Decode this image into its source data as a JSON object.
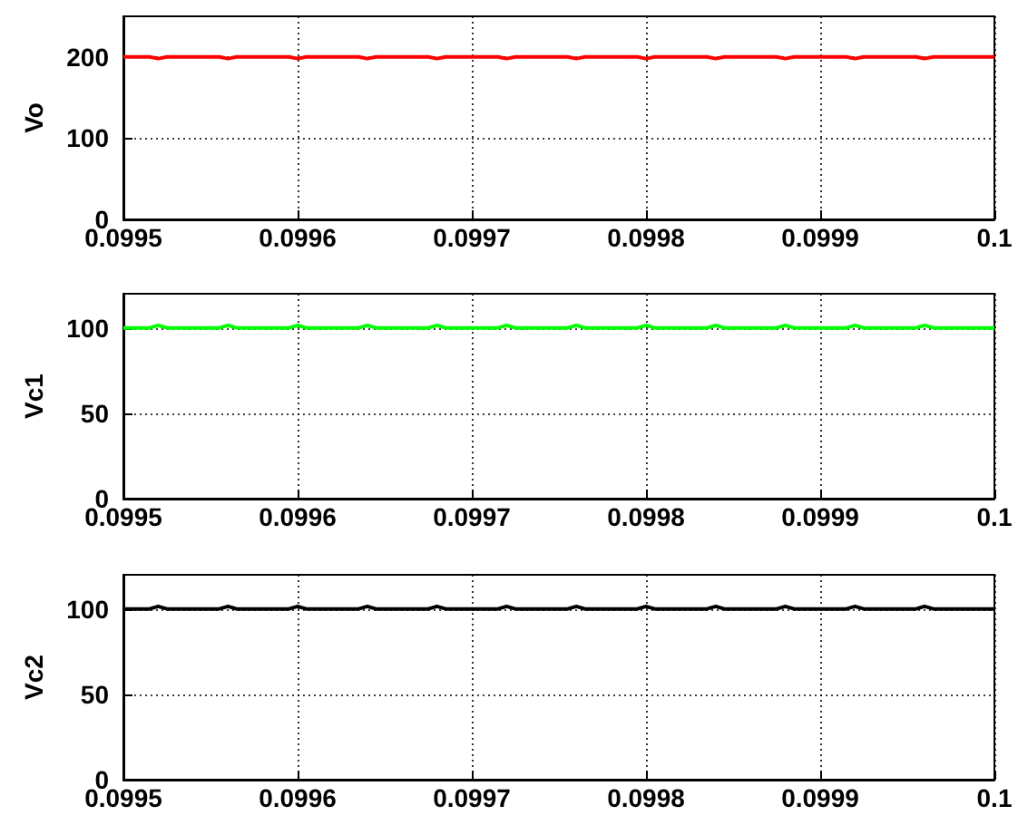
{
  "chart_data": [
    {
      "type": "line",
      "ylabel": "Vo",
      "x": [
        0.0995,
        0.099515,
        0.09952,
        0.099525,
        0.099555,
        0.09956,
        0.099565,
        0.099595,
        0.0996,
        0.099605,
        0.099635,
        0.09964,
        0.099645,
        0.099675,
        0.09968,
        0.099685,
        0.099715,
        0.09972,
        0.099725,
        0.099755,
        0.09976,
        0.099765,
        0.099795,
        0.0998,
        0.099805,
        0.099835,
        0.09984,
        0.099845,
        0.099875,
        0.09988,
        0.099885,
        0.099915,
        0.09992,
        0.099925,
        0.099955,
        0.09996,
        0.099965,
        0.1
      ],
      "series": [
        {
          "color": "#ff0000",
          "values": [
            200,
            200,
            198,
            200,
            200,
            198,
            200,
            200,
            198,
            200,
            200,
            198,
            200,
            200,
            198,
            200,
            200,
            198,
            200,
            200,
            198,
            200,
            200,
            198,
            200,
            200,
            198,
            200,
            200,
            198,
            200,
            200,
            198,
            200,
            200,
            198,
            200,
            200
          ]
        }
      ],
      "xlim": [
        0.0995,
        0.1
      ],
      "xticks": [
        0.0995,
        0.0996,
        0.0997,
        0.0998,
        0.0999,
        0.1
      ],
      "ylim": [
        0,
        250
      ],
      "yticks": [
        0,
        100,
        200
      ],
      "grid": true
    },
    {
      "type": "line",
      "ylabel": "Vc1",
      "x": [
        0.0995,
        0.099515,
        0.09952,
        0.099525,
        0.099555,
        0.09956,
        0.099565,
        0.099595,
        0.0996,
        0.099605,
        0.099635,
        0.09964,
        0.099645,
        0.099675,
        0.09968,
        0.099685,
        0.099715,
        0.09972,
        0.099725,
        0.099755,
        0.09976,
        0.099765,
        0.099795,
        0.0998,
        0.099805,
        0.099835,
        0.09984,
        0.099845,
        0.099875,
        0.09988,
        0.099885,
        0.099915,
        0.09992,
        0.099925,
        0.099955,
        0.09996,
        0.099965,
        0.1
      ],
      "series": [
        {
          "color": "#00ff00",
          "values": [
            100,
            100,
            101.5,
            100,
            100,
            101.5,
            100,
            100,
            101.5,
            100,
            100,
            101.5,
            100,
            100,
            101.5,
            100,
            100,
            101.5,
            100,
            100,
            101.5,
            100,
            100,
            101.5,
            100,
            100,
            101.5,
            100,
            100,
            101.5,
            100,
            100,
            101.5,
            100,
            100,
            101.5,
            100,
            100
          ]
        }
      ],
      "xlim": [
        0.0995,
        0.1
      ],
      "xticks": [
        0.0995,
        0.0996,
        0.0997,
        0.0998,
        0.0999,
        0.1
      ],
      "ylim": [
        0,
        120
      ],
      "yticks": [
        0,
        50,
        100
      ],
      "grid": true
    },
    {
      "type": "line",
      "ylabel": "Vc2",
      "x": [
        0.0995,
        0.099515,
        0.09952,
        0.099525,
        0.099555,
        0.09956,
        0.099565,
        0.099595,
        0.0996,
        0.099605,
        0.099635,
        0.09964,
        0.099645,
        0.099675,
        0.09968,
        0.099685,
        0.099715,
        0.09972,
        0.099725,
        0.099755,
        0.09976,
        0.099765,
        0.099795,
        0.0998,
        0.099805,
        0.099835,
        0.09984,
        0.099845,
        0.099875,
        0.09988,
        0.099885,
        0.099915,
        0.09992,
        0.099925,
        0.099955,
        0.09996,
        0.099965,
        0.1
      ],
      "series": [
        {
          "color": "#000000",
          "values": [
            100,
            100,
            101.5,
            100,
            100,
            101.5,
            100,
            100,
            101.5,
            100,
            100,
            101.5,
            100,
            100,
            101.5,
            100,
            100,
            101.5,
            100,
            100,
            101.5,
            100,
            100,
            101.5,
            100,
            100,
            101.5,
            100,
            100,
            101.5,
            100,
            100,
            101.5,
            100,
            100,
            101.5,
            100,
            100
          ]
        }
      ],
      "xlim": [
        0.0995,
        0.1
      ],
      "xticks": [
        0.0995,
        0.0996,
        0.0997,
        0.0998,
        0.0999,
        0.1
      ],
      "ylim": [
        0,
        120
      ],
      "yticks": [
        0,
        50,
        100
      ],
      "grid": true
    }
  ]
}
